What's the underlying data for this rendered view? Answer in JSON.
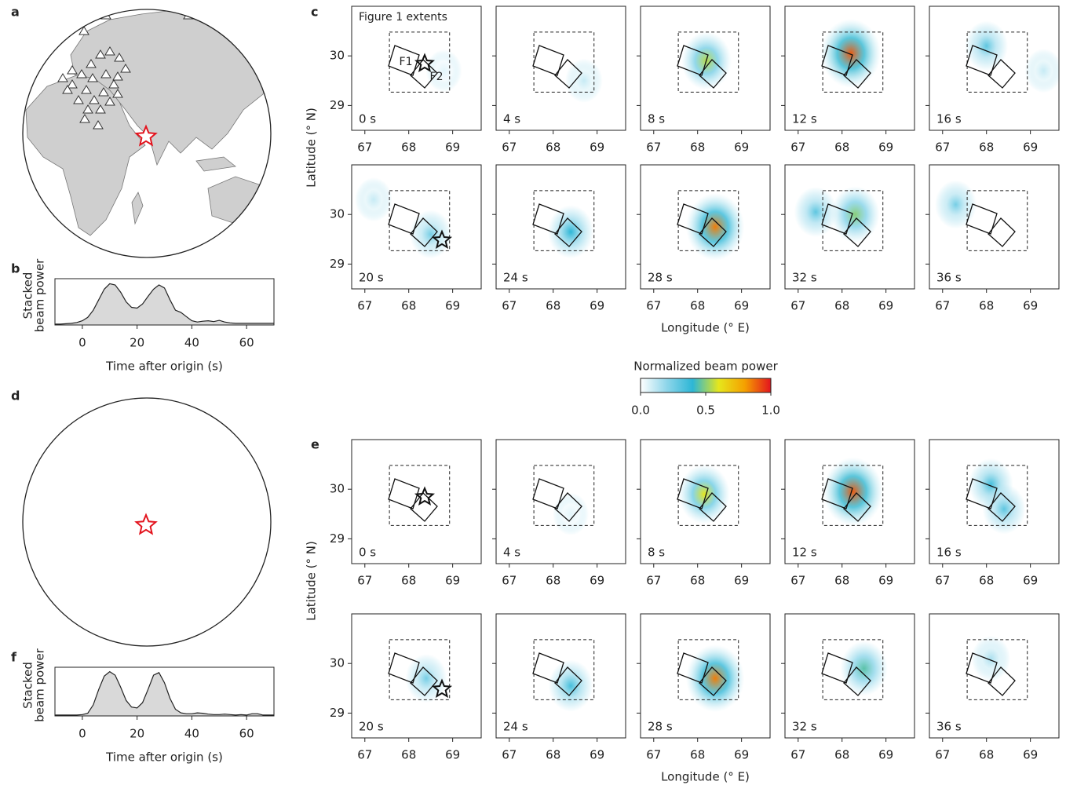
{
  "chart_data": [
    {
      "type": "globe",
      "label": "a"
    },
    {
      "type": "area",
      "label": "b",
      "xlabel": "Time after origin (s)",
      "ylabel": [
        "Stacked",
        "beam power"
      ],
      "color": "#d9d9d9",
      "xlim": [
        -10,
        70
      ],
      "xticks": [
        0,
        20,
        40,
        60
      ],
      "ylim": [
        0,
        1.1
      ],
      "x": [
        -10,
        -8,
        -6,
        -4,
        -2,
        0,
        2,
        4,
        6,
        8,
        10,
        12,
        14,
        16,
        18,
        20,
        22,
        24,
        26,
        28,
        30,
        32,
        34,
        36,
        38,
        40,
        42,
        44,
        46,
        48,
        50,
        52,
        54,
        56,
        58,
        60,
        62,
        64,
        66,
        68,
        70
      ],
      "values": [
        0.02,
        0.02,
        0.03,
        0.04,
        0.06,
        0.1,
        0.18,
        0.35,
        0.6,
        0.85,
        0.98,
        0.95,
        0.78,
        0.55,
        0.42,
        0.4,
        0.5,
        0.68,
        0.85,
        0.95,
        0.88,
        0.6,
        0.35,
        0.3,
        0.2,
        0.1,
        0.07,
        0.09,
        0.1,
        0.08,
        0.11,
        0.07,
        0.05,
        0.04,
        0.04,
        0.04,
        0.04,
        0.04,
        0.04,
        0.04,
        0.04
      ]
    },
    {
      "type": "beam-maps",
      "label": "c",
      "xlabel": "Longitude (° E)",
      "ylabel": "Latitude (° N)",
      "xlim": [
        66.7,
        69.65
      ],
      "ylim": [
        28.5,
        31.0
      ],
      "xticks": [
        67,
        68,
        69
      ],
      "yticks": [
        29,
        30
      ],
      "extent_x": [
        67.56,
        68.93
      ],
      "extent_y": [
        29.27,
        30.48
      ],
      "annotations": [
        "Figure 1 extents",
        "F1",
        "F2"
      ],
      "panels": [
        {
          "time": "0 s",
          "sources": [
            {
              "x": 68.8,
              "y": 29.7,
              "power": 0.05
            }
          ]
        },
        {
          "time": "4 s",
          "sources": [
            {
              "x": 68.7,
              "y": 29.5,
              "power": 0.1
            }
          ]
        },
        {
          "time": "8 s",
          "sources": [
            {
              "x": 68.2,
              "y": 29.9,
              "power": 0.55
            }
          ]
        },
        {
          "time": "12 s",
          "sources": [
            {
              "x": 68.2,
              "y": 30.05,
              "power": 0.9
            }
          ]
        },
        {
          "time": "16 s",
          "sources": [
            {
              "x": 68.0,
              "y": 30.2,
              "power": 0.3
            },
            {
              "x": 69.3,
              "y": 29.7,
              "power": 0.1
            }
          ]
        },
        {
          "time": "20 s",
          "sources": [
            {
              "x": 68.5,
              "y": 29.6,
              "power": 0.25
            },
            {
              "x": 67.2,
              "y": 30.3,
              "power": 0.1
            }
          ]
        },
        {
          "time": "24 s",
          "sources": [
            {
              "x": 68.4,
              "y": 29.65,
              "power": 0.4
            }
          ]
        },
        {
          "time": "28 s",
          "sources": [
            {
              "x": 68.4,
              "y": 29.75,
              "power": 0.85
            }
          ]
        },
        {
          "time": "32 s",
          "sources": [
            {
              "x": 68.3,
              "y": 30.0,
              "power": 0.5
            },
            {
              "x": 67.4,
              "y": 30.05,
              "power": 0.3
            }
          ]
        },
        {
          "time": "36 s",
          "sources": [
            {
              "x": 67.3,
              "y": 30.2,
              "power": 0.25
            }
          ]
        }
      ]
    },
    {
      "type": "colorbar",
      "title": "Normalized beam power",
      "lim": [
        0,
        1
      ],
      "ticks": [
        {
          "value": 0,
          "label": "0.0"
        },
        {
          "value": 0.5,
          "label": "0.5"
        },
        {
          "value": 1,
          "label": "1.0"
        }
      ],
      "colors": [
        "#ffffff",
        "#8fd6ea",
        "#2cb6d6",
        "#e6e61c",
        "#f5a000",
        "#e3141e"
      ]
    },
    {
      "type": "globe",
      "label": "d"
    },
    {
      "type": "area",
      "label": "f",
      "xlabel": "Time after origin (s)",
      "ylabel": [
        "Stacked",
        "beam power"
      ],
      "color": "#d9d9d9",
      "xlim": [
        -10,
        70
      ],
      "xticks": [
        0,
        20,
        40,
        60
      ],
      "ylim": [
        0,
        1.1
      ],
      "x": [
        -10,
        -8,
        -6,
        -4,
        -2,
        0,
        2,
        4,
        6,
        8,
        10,
        12,
        14,
        16,
        18,
        20,
        22,
        24,
        26,
        28,
        30,
        32,
        34,
        36,
        38,
        40,
        42,
        44,
        46,
        48,
        50,
        52,
        54,
        56,
        58,
        60,
        62,
        64,
        66,
        68,
        70
      ],
      "values": [
        0.02,
        0.02,
        0.02,
        0.02,
        0.02,
        0.03,
        0.06,
        0.25,
        0.6,
        0.9,
        1.0,
        0.92,
        0.65,
        0.35,
        0.2,
        0.18,
        0.3,
        0.6,
        0.92,
        0.98,
        0.75,
        0.4,
        0.15,
        0.07,
        0.05,
        0.05,
        0.07,
        0.06,
        0.04,
        0.03,
        0.03,
        0.04,
        0.03,
        0.02,
        0.03,
        0.02,
        0.05,
        0.05,
        0.02,
        0.02,
        0.02
      ]
    },
    {
      "type": "beam-maps",
      "label": "e",
      "xlabel": "Longitude (° E)",
      "ylabel": "Latitude (° N)",
      "xlim": [
        66.7,
        69.65
      ],
      "ylim": [
        28.5,
        31.0
      ],
      "xticks": [
        67,
        68,
        69
      ],
      "yticks": [
        29,
        30
      ],
      "extent_x": [
        67.56,
        68.93
      ],
      "extent_y": [
        29.27,
        30.48
      ],
      "panels": [
        {
          "time": "0 s",
          "sources": []
        },
        {
          "time": "4 s",
          "sources": [
            {
              "x": 68.4,
              "y": 29.5,
              "power": 0.05
            }
          ]
        },
        {
          "time": "8 s",
          "sources": [
            {
              "x": 68.15,
              "y": 29.9,
              "power": 0.6
            }
          ]
        },
        {
          "time": "12 s",
          "sources": [
            {
              "x": 68.25,
              "y": 29.95,
              "power": 0.9
            }
          ]
        },
        {
          "time": "16 s",
          "sources": [
            {
              "x": 68.1,
              "y": 30.1,
              "power": 0.35
            },
            {
              "x": 68.4,
              "y": 29.6,
              "power": 0.3
            }
          ]
        },
        {
          "time": "20 s",
          "sources": [
            {
              "x": 68.4,
              "y": 29.7,
              "power": 0.25
            }
          ]
        },
        {
          "time": "24 s",
          "sources": [
            {
              "x": 68.4,
              "y": 29.55,
              "power": 0.35
            }
          ]
        },
        {
          "time": "28 s",
          "sources": [
            {
              "x": 68.4,
              "y": 29.7,
              "power": 0.85
            }
          ]
        },
        {
          "time": "32 s",
          "sources": [
            {
              "x": 68.5,
              "y": 29.9,
              "power": 0.45
            }
          ]
        },
        {
          "time": "36 s",
          "sources": [
            {
              "x": 68.1,
              "y": 30.1,
              "power": 0.15
            }
          ]
        }
      ]
    }
  ]
}
